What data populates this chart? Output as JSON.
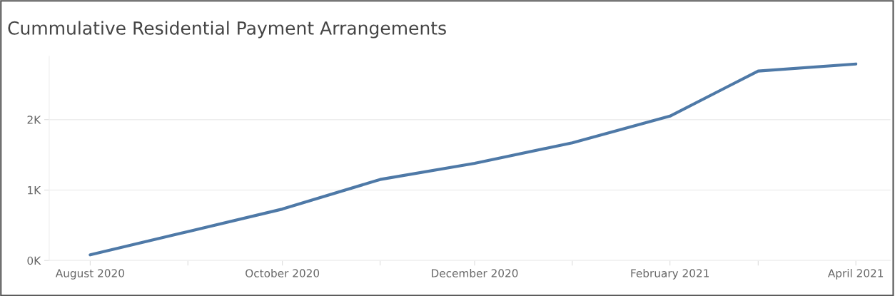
{
  "chart_data": {
    "type": "line",
    "title": "Cummulative Residential Payment Arrangements",
    "x": [
      "2020-08",
      "2020-09",
      "2020-10",
      "2020-11",
      "2020-12",
      "2021-01",
      "2021-02",
      "2021-03",
      "2021-04"
    ],
    "series": [
      {
        "color": "#4e79a7",
        "values": [
          80,
          410,
          730,
          1150,
          1380,
          1670,
          2050,
          2690,
          2790
        ]
      }
    ],
    "xlim": [
      "2020-07-19",
      "2021-04-12"
    ],
    "xticks": [
      {
        "value": "2020-08",
        "label": "August 2020"
      },
      {
        "value": "2020-09",
        "label": null
      },
      {
        "value": "2020-10",
        "label": "October 2020"
      },
      {
        "value": "2020-11",
        "label": null
      },
      {
        "value": "2020-12",
        "label": "December 2020"
      },
      {
        "value": "2021-01",
        "label": null
      },
      {
        "value": "2021-02",
        "label": "February 2021"
      },
      {
        "value": "2021-03",
        "label": null
      },
      {
        "value": "2021-04",
        "label": "April 2021"
      }
    ],
    "ylim": [
      0,
      2900
    ],
    "yticks": [
      {
        "value": 0,
        "label": "0K"
      },
      {
        "value": 1000,
        "label": "1K"
      },
      {
        "value": 2000,
        "label": "2K"
      }
    ],
    "grid": "y",
    "marker": "none",
    "line_style": "solid"
  }
}
